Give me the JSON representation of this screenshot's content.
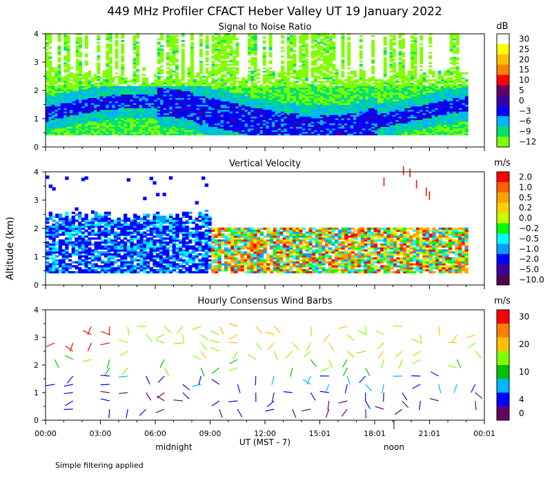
{
  "figure": {
    "title": "449 MHz Profiler CFACT Heber Valley UT 19 January 2022",
    "ylabel": "Altitude (km)",
    "xlabel": "UT  (MST - 7)",
    "x_ticks": [
      "00:00",
      "03:00",
      "06:00",
      "09:00",
      "12:00",
      "15:01",
      "18:01",
      "21:01",
      "00:01"
    ],
    "day_markers": [
      "midnight",
      "noon"
    ],
    "footnote": "Simple filtering applied"
  },
  "chart_data": [
    {
      "type": "heatmap",
      "title": "Signal to Noise Ratio",
      "xlabel": "UT (MST - 7)",
      "ylabel": "Altitude (km)",
      "xlim": [
        0,
        24
      ],
      "ylim": [
        0,
        4
      ],
      "y_ticks": [
        "0",
        "1",
        "2",
        "3",
        "4"
      ],
      "colorbar_unit": "dB",
      "colorbar_labels": [
        "30",
        "25",
        "20",
        "15",
        "10",
        "5",
        "0",
        "−3",
        "−6",
        "−9",
        "−12"
      ],
      "colorbar_colors": [
        "#ffffff",
        "#ffff00",
        "#ffc000",
        "#ff8000",
        "#ff0000",
        "#640064",
        "#3c00a0",
        "#0000ff",
        "#00b4ff",
        "#00e070",
        "#80ff00"
      ]
    },
    {
      "type": "heatmap",
      "title": "Vertical Velocity",
      "xlabel": "UT (MST - 7)",
      "ylabel": "Altitude (km)",
      "xlim": [
        0,
        24
      ],
      "ylim": [
        0,
        4
      ],
      "y_ticks": [
        "0",
        "1",
        "2",
        "3",
        "4"
      ],
      "colorbar_unit": "m/s",
      "colorbar_labels": [
        "2.0",
        "1.0",
        "0.5",
        "0.2",
        "0.0",
        "−0.2",
        "−0.5",
        "−1.0",
        "−2.0",
        "−5.0",
        "−10.0"
      ],
      "colorbar_colors": [
        "#ff0000",
        "#ff6000",
        "#ffa000",
        "#ffd000",
        "#c8ff00",
        "#00ff00",
        "#00ffff",
        "#00a0ff",
        "#0000ff",
        "#3c00a0",
        "#500050"
      ]
    },
    {
      "type": "scatter",
      "title": "Hourly Consensus Wind Barbs",
      "xlabel": "UT (MST - 7)",
      "ylabel": "Altitude (km)",
      "xlim": [
        0,
        24
      ],
      "ylim": [
        0,
        4
      ],
      "y_ticks": [
        "0",
        "1",
        "2",
        "3",
        "4"
      ],
      "colorbar_unit": "m/s",
      "colorbar_labels": [
        "30",
        "20",
        "10",
        "4",
        "0"
      ],
      "colorbar_colors": [
        "#ff0000",
        "#ff8000",
        "#ffc000",
        "#80ff00",
        "#00c000",
        "#00b4ff",
        "#0000ff",
        "#640064"
      ],
      "colorbar_label_bins": [
        0,
        2,
        4,
        6,
        7
      ]
    }
  ]
}
